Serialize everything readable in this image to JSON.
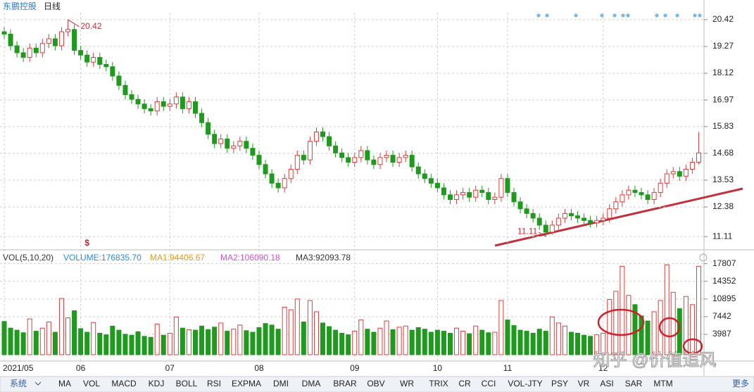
{
  "header": {
    "stock": "东鹏控股",
    "period": "日线"
  },
  "watermark": "知乎 @价值追风",
  "toolbar": {
    "menu": "系统",
    "tabs": [
      "MA",
      "VOL",
      "MACD",
      "KDJ",
      "BOLL",
      "RSI",
      "EXPMA",
      "DMI",
      "DMA",
      "BRAR",
      "OBV",
      "WR",
      "TRIX",
      "CR",
      "CCI",
      "VOL-JTY",
      "PSY",
      "VR",
      "ASI",
      "SAR",
      "MTM"
    ],
    "more": "更多"
  },
  "chart_data": [
    {
      "type": "candlestick",
      "annotations": [
        "20.42",
        "11.11"
      ],
      "marker": "$",
      "up_color": "#e23b3b",
      "down_color": "#1f9a1f",
      "ylim": [
        10.63,
        20.72
      ],
      "yticks": [
        11.11,
        12.38,
        13.53,
        14.68,
        15.83,
        16.97,
        18.12,
        19.27,
        20.42
      ],
      "grid": true,
      "categories": [
        "2021/05",
        null,
        null,
        null,
        null,
        null,
        null,
        null,
        null,
        null,
        null,
        null,
        "06",
        null,
        null,
        null,
        null,
        null,
        null,
        null,
        null,
        null,
        null,
        null,
        null,
        null,
        "07",
        null,
        null,
        null,
        null,
        null,
        null,
        null,
        null,
        null,
        null,
        null,
        null,
        null,
        "08",
        null,
        null,
        null,
        null,
        null,
        null,
        null,
        null,
        null,
        null,
        null,
        null,
        null,
        null,
        "09",
        null,
        null,
        null,
        null,
        null,
        null,
        null,
        null,
        null,
        null,
        null,
        null,
        "10",
        null,
        null,
        null,
        null,
        null,
        null,
        null,
        null,
        null,
        null,
        "11",
        null,
        null,
        null,
        null,
        null,
        null,
        null,
        null,
        null,
        null,
        null,
        null,
        null,
        null,
        "12",
        null,
        null,
        null,
        null,
        null,
        null,
        null,
        null,
        null,
        null,
        null,
        null,
        null,
        null,
        null
      ],
      "open": [
        19.9,
        19.8,
        19.3,
        19.0,
        18.8,
        19.2,
        19.0,
        19.4,
        19.6,
        19.3,
        19.9,
        20.0,
        19.1,
        18.9,
        18.6,
        18.8,
        18.5,
        18.4,
        18.0,
        17.6,
        17.2,
        17.0,
        16.8,
        16.6,
        16.5,
        16.9,
        16.7,
        16.8,
        17.1,
        16.6,
        16.9,
        16.4,
        16.0,
        15.5,
        15.1,
        15.3,
        14.9,
        15.0,
        15.2,
        14.9,
        14.6,
        14.2,
        13.8,
        13.4,
        13.2,
        13.6,
        14.0,
        14.6,
        14.4,
        15.2,
        15.6,
        15.4,
        15.0,
        14.7,
        14.5,
        14.3,
        14.5,
        14.8,
        14.4,
        14.2,
        14.5,
        14.6,
        14.3,
        14.5,
        14.6,
        14.1,
        13.8,
        13.6,
        13.4,
        13.2,
        12.9,
        12.7,
        12.9,
        13.0,
        12.8,
        13.1,
        13.0,
        12.7,
        12.8,
        13.6,
        13.0,
        12.6,
        12.3,
        12.1,
        11.9,
        11.6,
        11.3,
        11.6,
        11.9,
        12.1,
        12.0,
        11.9,
        11.8,
        11.7,
        11.8,
        11.9,
        12.3,
        12.6,
        12.9,
        13.1,
        13.0,
        12.9,
        12.7,
        13.0,
        13.4,
        13.8,
        13.9,
        13.7,
        14.0,
        14.3
      ],
      "high": [
        20.1,
        20.0,
        19.5,
        19.2,
        19.4,
        19.4,
        19.6,
        19.8,
        19.8,
        20.1,
        20.42,
        20.2,
        19.3,
        19.1,
        19.0,
        19.0,
        18.7,
        18.6,
        18.2,
        17.8,
        17.4,
        17.2,
        17.0,
        16.8,
        17.1,
        17.1,
        17.0,
        17.3,
        17.3,
        17.1,
        17.1,
        16.6,
        16.2,
        15.7,
        15.5,
        15.5,
        15.2,
        15.4,
        15.4,
        15.1,
        14.8,
        14.4,
        14.0,
        13.6,
        13.8,
        14.2,
        14.8,
        14.8,
        15.4,
        15.8,
        15.8,
        15.6,
        15.2,
        14.9,
        14.7,
        14.7,
        15.0,
        15.0,
        14.6,
        14.7,
        14.8,
        14.8,
        14.7,
        14.8,
        14.8,
        14.3,
        14.0,
        13.8,
        13.6,
        13.4,
        13.1,
        13.1,
        13.2,
        13.2,
        13.3,
        13.3,
        13.2,
        13.0,
        13.8,
        13.8,
        13.2,
        12.8,
        12.5,
        12.3,
        12.1,
        11.8,
        11.8,
        12.1,
        12.3,
        12.3,
        12.2,
        12.1,
        12.0,
        12.0,
        12.1,
        12.5,
        12.8,
        13.1,
        13.3,
        13.3,
        13.2,
        13.1,
        13.2,
        13.6,
        14.0,
        14.1,
        14.1,
        14.2,
        14.5,
        15.6
      ],
      "low": [
        19.6,
        19.1,
        18.8,
        18.6,
        18.6,
        18.8,
        18.8,
        19.2,
        19.1,
        19.1,
        19.7,
        18.9,
        18.7,
        18.4,
        18.4,
        18.3,
        18.2,
        17.8,
        17.4,
        17.0,
        16.8,
        16.6,
        16.4,
        16.3,
        16.3,
        16.5,
        16.5,
        16.6,
        16.4,
        16.4,
        16.2,
        15.8,
        15.3,
        14.9,
        14.9,
        14.7,
        14.7,
        14.8,
        14.7,
        14.4,
        14.0,
        13.6,
        13.2,
        13.0,
        13.0,
        13.4,
        13.8,
        14.2,
        14.2,
        15.0,
        15.2,
        14.8,
        14.5,
        14.3,
        14.1,
        14.1,
        14.3,
        14.2,
        14.0,
        14.0,
        14.3,
        14.1,
        14.1,
        14.3,
        13.9,
        13.6,
        13.4,
        13.2,
        13.0,
        12.7,
        12.5,
        12.5,
        12.7,
        12.6,
        12.6,
        12.8,
        12.5,
        12.5,
        12.6,
        12.8,
        12.4,
        12.1,
        11.9,
        11.7,
        11.4,
        11.11,
        11.2,
        11.4,
        11.7,
        11.8,
        11.7,
        11.6,
        11.5,
        11.5,
        11.6,
        11.7,
        12.1,
        12.4,
        12.7,
        12.8,
        12.7,
        12.5,
        12.5,
        12.8,
        13.2,
        13.6,
        13.5,
        13.5,
        13.8,
        14.2
      ],
      "close": [
        19.8,
        19.3,
        19.0,
        18.8,
        19.2,
        19.0,
        19.4,
        19.6,
        19.3,
        19.9,
        20.0,
        19.1,
        18.9,
        18.6,
        18.8,
        18.5,
        18.4,
        18.0,
        17.6,
        17.2,
        17.0,
        16.8,
        16.6,
        16.5,
        16.9,
        16.7,
        16.8,
        17.1,
        16.6,
        16.9,
        16.4,
        16.0,
        15.5,
        15.1,
        15.3,
        14.9,
        15.0,
        15.2,
        14.9,
        14.6,
        14.2,
        13.8,
        13.4,
        13.2,
        13.6,
        14.0,
        14.6,
        14.4,
        15.2,
        15.6,
        15.4,
        15.0,
        14.7,
        14.5,
        14.3,
        14.5,
        14.8,
        14.4,
        14.2,
        14.5,
        14.6,
        14.3,
        14.5,
        14.6,
        14.1,
        13.8,
        13.6,
        13.4,
        13.2,
        12.9,
        12.7,
        12.9,
        13.0,
        12.8,
        13.1,
        13.0,
        12.7,
        12.8,
        13.6,
        13.0,
        12.6,
        12.3,
        12.1,
        11.9,
        11.6,
        11.3,
        11.6,
        11.9,
        12.1,
        12.0,
        11.9,
        11.8,
        11.7,
        11.8,
        11.9,
        12.3,
        12.6,
        12.9,
        13.1,
        13.0,
        12.9,
        12.7,
        13.0,
        13.4,
        13.8,
        13.9,
        13.7,
        14.0,
        14.3,
        14.7
      ]
    },
    {
      "type": "bar",
      "legend": [
        {
          "text": "VOL(5,10,20)",
          "color": "#333333"
        },
        {
          "text": "VOLUME:176835.70",
          "color": "#2b8ad6"
        },
        {
          "text": "MA1:94406.67",
          "color": "#e29a1e"
        },
        {
          "text": "MA2:106090.18",
          "color": "#d04fd0"
        },
        {
          "text": "MA3:92093.78",
          "color": "#333333"
        }
      ],
      "ylim": [
        0,
        19550
      ],
      "yticks": [
        3987,
        7442,
        10895,
        14352,
        17807
      ],
      "values": [
        6500,
        5200,
        4800,
        4300,
        7000,
        4600,
        5200,
        6400,
        4400,
        11000,
        7200,
        8600,
        5100,
        4400,
        6300,
        4200,
        3900,
        5600,
        4800,
        4000,
        3800,
        4500,
        3600,
        3400,
        6000,
        3800,
        4200,
        7400,
        5200,
        4900,
        4800,
        5600,
        4900,
        5400,
        6200,
        4600,
        5000,
        5800,
        4700,
        4400,
        5300,
        6100,
        5800,
        5000,
        9300,
        8800,
        10900,
        6400,
        10600,
        8400,
        6200,
        5500,
        4800,
        4200,
        3900,
        4600,
        6800,
        5000,
        4400,
        5200,
        6600,
        4900,
        5400,
        5600,
        4800,
        5300,
        5000,
        4400,
        4800,
        4600,
        4200,
        5200,
        4600,
        4100,
        5600,
        4800,
        4300,
        4400,
        10600,
        6800,
        5700,
        4800,
        4600,
        4200,
        5000,
        4600,
        7400,
        6200,
        5600,
        4400,
        4200,
        3800,
        3600,
        3900,
        4200,
        10800,
        12400,
        17300,
        11600,
        9800,
        7600,
        6600,
        8400,
        10600,
        17600,
        12200,
        9000,
        11400,
        9800,
        17300
      ]
    }
  ]
}
